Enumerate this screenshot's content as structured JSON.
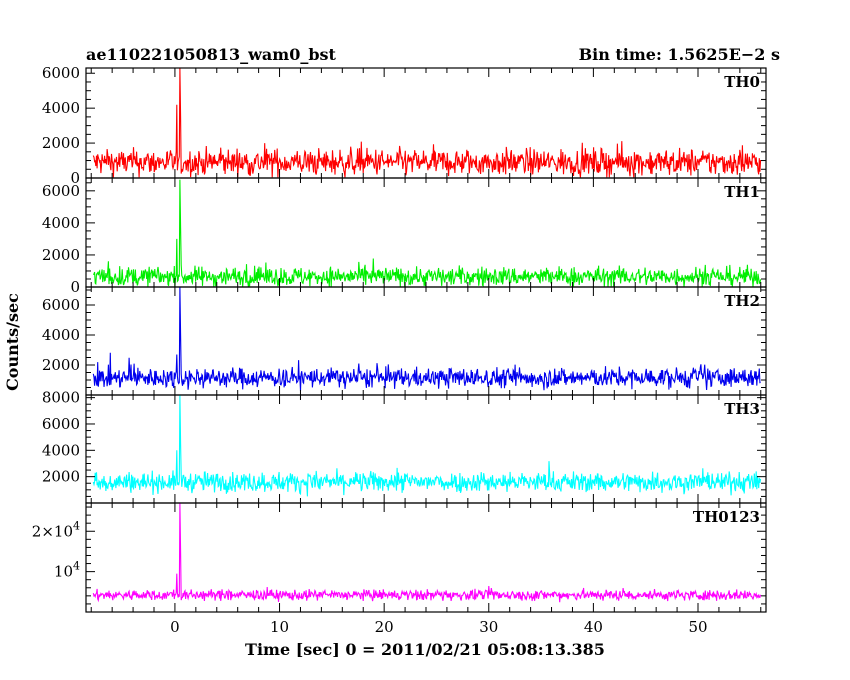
{
  "header": {
    "title": "ae110221050813_wam0_bst",
    "bin_time": "Bin time: 1.5625E−2 s"
  },
  "chart_data": {
    "type": "line",
    "title": "ae110221050813_wam0_bst",
    "xlabel": "Time [sec] 0 = 2011/02/21 05:08:13.385",
    "ylabel": "Counts/sec",
    "bin_time_s": 0.015625,
    "xlim": [
      -8.5,
      56.5
    ],
    "data_range": [
      -7.8,
      56
    ],
    "x_ticks": [
      0,
      10,
      20,
      30,
      40,
      50
    ],
    "x_tick_labels": [
      "0",
      "10",
      "20",
      "30",
      "40",
      "50"
    ],
    "grid": false,
    "panels": [
      {
        "name": "TH0",
        "color": "#ff0000",
        "ylim": [
          0,
          6300
        ],
        "y_ticks": [
          0,
          2000,
          4000,
          6000
        ],
        "y_tick_labels": [
          "0",
          "2000",
          "4000",
          "6000"
        ],
        "baseline": 900,
        "noise": 380,
        "precursor": {
          "t": 0.2,
          "peak": 4200
        },
        "spike": {
          "t": 0.5,
          "peak": 6300
        }
      },
      {
        "name": "TH1",
        "color": "#00ee00",
        "ylim": [
          0,
          6800
        ],
        "y_ticks": [
          0,
          2000,
          4000,
          6000
        ],
        "y_tick_labels": [
          "0",
          "2000",
          "4000",
          "6000"
        ],
        "baseline": 650,
        "noise": 300,
        "precursor": {
          "t": 0.2,
          "peak": 3000
        },
        "spike": {
          "t": 0.5,
          "peak": 6700
        }
      },
      {
        "name": "TH2",
        "color": "#0000ee",
        "ylim": [
          0,
          7200
        ],
        "y_ticks": [
          2000,
          4000,
          6000
        ],
        "y_tick_labels": [
          "2000",
          "4000",
          "6000"
        ],
        "baseline": 1150,
        "noise": 330,
        "precursor": {
          "t": 0.2,
          "peak": 2700
        },
        "spike": {
          "t": 0.5,
          "peak": 7200
        }
      },
      {
        "name": "TH3",
        "color": "#00ffff",
        "ylim": [
          0,
          8200
        ],
        "y_ticks": [
          2000,
          4000,
          6000,
          8000
        ],
        "y_tick_labels": [
          "2000",
          "4000",
          "6000",
          "8000"
        ],
        "baseline": 1600,
        "noise": 380,
        "precursor": {
          "t": 0.2,
          "peak": 4000
        },
        "spike": {
          "t": 0.5,
          "peak": 8200
        }
      },
      {
        "name": "TH0123",
        "color": "#ff00ff",
        "ylim": [
          0,
          27000
        ],
        "y_ticks": [
          10000,
          20000
        ],
        "y_tick_labels": [
          "10^4",
          "2×10^4"
        ],
        "baseline": 4200,
        "noise": 650,
        "precursor": {
          "t": 0.2,
          "peak": 9500
        },
        "spike": {
          "t": 0.5,
          "peak": 27000
        }
      }
    ]
  }
}
